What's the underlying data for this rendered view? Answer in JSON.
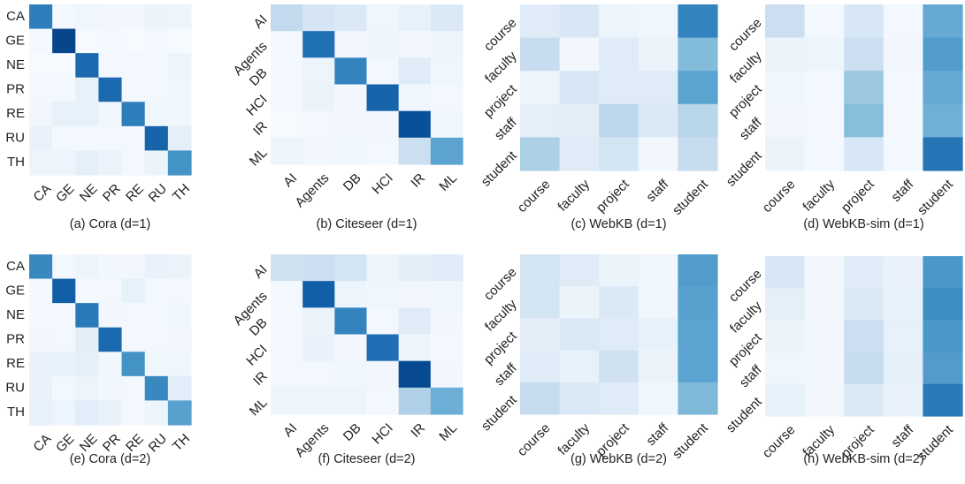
{
  "chart_data": [
    {
      "type": "heatmap",
      "caption": "(a) Cora (d=1)",
      "row_labels": [
        "CA",
        "GE",
        "NE",
        "PR",
        "RE",
        "RU",
        "TH"
      ],
      "col_labels": [
        "CA",
        "GE",
        "NE",
        "PR",
        "RE",
        "RU",
        "TH"
      ],
      "values": [
        [
          0.7,
          0.02,
          0.04,
          0.03,
          0.03,
          0.06,
          0.05
        ],
        [
          0.02,
          0.92,
          0.01,
          0.02,
          0.01,
          0.02,
          0.01
        ],
        [
          0.01,
          0.01,
          0.78,
          0.02,
          0.02,
          0.02,
          0.05
        ],
        [
          0.02,
          0.02,
          0.08,
          0.78,
          0.02,
          0.02,
          0.04
        ],
        [
          0.03,
          0.08,
          0.08,
          0.03,
          0.7,
          0.04,
          0.04
        ],
        [
          0.07,
          0.02,
          0.02,
          0.02,
          0.02,
          0.8,
          0.09
        ],
        [
          0.05,
          0.05,
          0.09,
          0.06,
          0.02,
          0.06,
          0.62
        ]
      ]
    },
    {
      "type": "heatmap",
      "caption": "(b) Citeseer (d=1)",
      "row_labels": [
        "AI",
        "Agents",
        "DB",
        "HCI",
        "IR",
        "ML"
      ],
      "col_labels": [
        "AI",
        "Agents",
        "DB",
        "HCI",
        "IR",
        "ML"
      ],
      "values": [
        [
          0.26,
          0.17,
          0.14,
          0.04,
          0.08,
          0.14
        ],
        [
          0.02,
          0.75,
          0.03,
          0.05,
          0.03,
          0.05
        ],
        [
          0.02,
          0.05,
          0.68,
          0.02,
          0.12,
          0.04
        ],
        [
          0.02,
          0.06,
          0.03,
          0.8,
          0.04,
          0.02
        ],
        [
          0.01,
          0.02,
          0.03,
          0.03,
          0.88,
          0.04
        ],
        [
          0.05,
          0.03,
          0.04,
          0.02,
          0.22,
          0.55
        ]
      ]
    },
    {
      "type": "heatmap",
      "caption": "(c) WebKB (d=1)",
      "row_labels": [
        "course",
        "faculty",
        "project",
        "staff",
        "student"
      ],
      "col_labels": [
        "course",
        "faculty",
        "project",
        "staff",
        "student"
      ],
      "values": [
        [
          0.12,
          0.16,
          0.05,
          0.04,
          0.68
        ],
        [
          0.24,
          0.03,
          0.12,
          0.06,
          0.44
        ],
        [
          0.05,
          0.16,
          0.12,
          0.12,
          0.55
        ],
        [
          0.09,
          0.1,
          0.28,
          0.14,
          0.29
        ],
        [
          0.33,
          0.12,
          0.18,
          0.03,
          0.24
        ]
      ]
    },
    {
      "type": "heatmap",
      "caption": "(d) WebKB-sim (d=1)",
      "row_labels": [
        "course",
        "faculty",
        "project",
        "staff",
        "student"
      ],
      "col_labels": [
        "course",
        "faculty",
        "project",
        "staff",
        "student"
      ],
      "values": [
        [
          0.22,
          0.02,
          0.16,
          0.02,
          0.52
        ],
        [
          0.06,
          0.05,
          0.22,
          0.03,
          0.58
        ],
        [
          0.04,
          0.02,
          0.38,
          0.02,
          0.52
        ],
        [
          0.03,
          0.02,
          0.43,
          0.02,
          0.49
        ],
        [
          0.06,
          0.02,
          0.16,
          0.02,
          0.74
        ]
      ]
    },
    {
      "type": "heatmap",
      "caption": "(e) Cora (d=2)",
      "row_labels": [
        "CA",
        "GE",
        "NE",
        "PR",
        "RE",
        "RU",
        "TH"
      ],
      "col_labels": [
        "CA",
        "GE",
        "NE",
        "PR",
        "RE",
        "RU",
        "TH"
      ],
      "values": [
        [
          0.66,
          0.02,
          0.05,
          0.03,
          0.03,
          0.07,
          0.06
        ],
        [
          0.02,
          0.82,
          0.02,
          0.02,
          0.08,
          0.02,
          0.02
        ],
        [
          0.02,
          0.02,
          0.72,
          0.03,
          0.02,
          0.02,
          0.04
        ],
        [
          0.03,
          0.02,
          0.1,
          0.78,
          0.02,
          0.02,
          0.03
        ],
        [
          0.07,
          0.08,
          0.09,
          0.03,
          0.62,
          0.04,
          0.04
        ],
        [
          0.07,
          0.02,
          0.05,
          0.03,
          0.02,
          0.66,
          0.11
        ],
        [
          0.08,
          0.05,
          0.11,
          0.07,
          0.02,
          0.05,
          0.56
        ]
      ]
    },
    {
      "type": "heatmap",
      "caption": "(f) Citeseer (d=2)",
      "row_labels": [
        "AI",
        "Agents",
        "DB",
        "HCI",
        "IR",
        "ML"
      ],
      "col_labels": [
        "AI",
        "Agents",
        "DB",
        "HCI",
        "IR",
        "ML"
      ],
      "values": [
        [
          0.2,
          0.22,
          0.18,
          0.05,
          0.1,
          0.12
        ],
        [
          0.02,
          0.82,
          0.05,
          0.04,
          0.03,
          0.04
        ],
        [
          0.02,
          0.06,
          0.68,
          0.02,
          0.12,
          0.03
        ],
        [
          0.02,
          0.07,
          0.03,
          0.76,
          0.05,
          0.02
        ],
        [
          0.02,
          0.02,
          0.04,
          0.03,
          0.9,
          0.03
        ],
        [
          0.05,
          0.05,
          0.05,
          0.02,
          0.32,
          0.5
        ]
      ]
    },
    {
      "type": "heatmap",
      "caption": "(g) WebKB (d=2)",
      "row_labels": [
        "course",
        "faculty",
        "project",
        "staff",
        "student"
      ],
      "col_labels": [
        "course",
        "faculty",
        "project",
        "staff",
        "student"
      ],
      "values": [
        [
          0.18,
          0.12,
          0.06,
          0.04,
          0.58
        ],
        [
          0.18,
          0.06,
          0.14,
          0.04,
          0.56
        ],
        [
          0.1,
          0.15,
          0.12,
          0.08,
          0.55
        ],
        [
          0.12,
          0.08,
          0.2,
          0.06,
          0.55
        ],
        [
          0.24,
          0.14,
          0.12,
          0.04,
          0.45
        ]
      ]
    },
    {
      "type": "heatmap",
      "caption": "(h) WebKB-sim (d=2)",
      "row_labels": [
        "course",
        "faculty",
        "project",
        "staff",
        "student"
      ],
      "col_labels": [
        "course",
        "faculty",
        "project",
        "staff",
        "student"
      ],
      "values": [
        [
          0.16,
          0.03,
          0.12,
          0.07,
          0.6
        ],
        [
          0.09,
          0.03,
          0.14,
          0.08,
          0.64
        ],
        [
          0.06,
          0.03,
          0.22,
          0.08,
          0.6
        ],
        [
          0.04,
          0.03,
          0.24,
          0.09,
          0.58
        ],
        [
          0.08,
          0.03,
          0.14,
          0.07,
          0.72
        ]
      ]
    }
  ],
  "colors": {
    "low": "#f7fbff",
    "mid": "#9ecae1",
    "high": "#08306b"
  }
}
